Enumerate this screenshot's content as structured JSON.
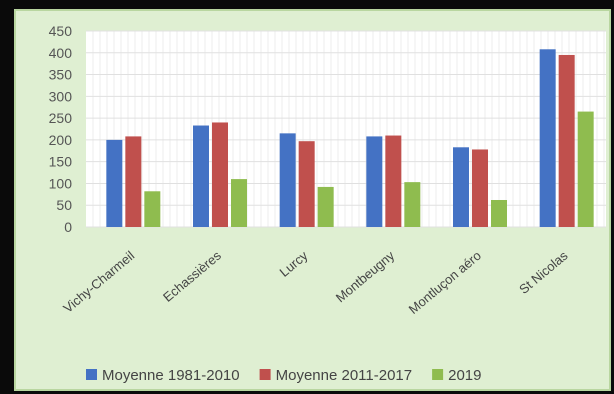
{
  "chart_data": {
    "type": "bar",
    "categories": [
      "Vichy-Charmeil",
      "Echassières",
      "Lurcy",
      "Montbeugny",
      "Montluçon aéro",
      "St Nicolas"
    ],
    "series": [
      {
        "name": "Moyenne 1981-2010",
        "color": "#4472c4",
        "values": [
          200,
          233,
          215,
          208,
          183,
          408
        ]
      },
      {
        "name": "Moyenne 2011-2017",
        "color": "#c0504d",
        "values": [
          208,
          240,
          197,
          210,
          178,
          395
        ]
      },
      {
        "name": "2019",
        "color": "#8fbc4f",
        "values": [
          82,
          110,
          92,
          103,
          62,
          265
        ]
      }
    ],
    "yticks": [
      "0",
      "50",
      "100",
      "150",
      "200",
      "250",
      "300",
      "350",
      "400",
      "450"
    ],
    "ylim": [
      0,
      450
    ],
    "grid": true,
    "legend_position": "bottom"
  }
}
